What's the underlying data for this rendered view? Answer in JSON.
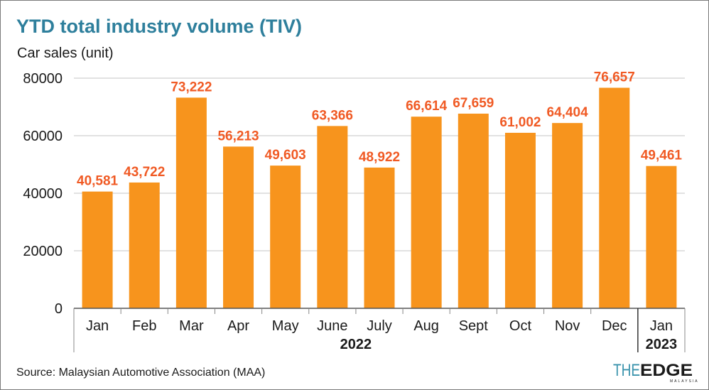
{
  "chart_data": {
    "type": "bar",
    "title": "YTD total industry volume (TIV)",
    "ylabel": "Car sales (unit)",
    "ylim": [
      0,
      80000
    ],
    "yticks": [
      "0",
      "20000",
      "40000",
      "60000",
      "80000"
    ],
    "grid": true,
    "categories": [
      "Jan",
      "Feb",
      "Mar",
      "Apr",
      "May",
      "June",
      "July",
      "Aug",
      "Sept",
      "Oct",
      "Nov",
      "Dec",
      "Jan"
    ],
    "year_groups": [
      {
        "label": "2022",
        "count": 12
      },
      {
        "label": "2023",
        "count": 1
      }
    ],
    "values": [
      40581,
      43722,
      73222,
      56213,
      49603,
      63366,
      48922,
      66614,
      67659,
      61002,
      64404,
      76657,
      49461
    ],
    "data_labels": [
      "40,581",
      "43,722",
      "73,222",
      "56,213",
      "49,603",
      "63,366",
      "48,922",
      "66,614",
      "67,659",
      "61,002",
      "64,404",
      "76,657",
      "49,461"
    ],
    "bar_color": "#f7941d",
    "label_color": "#f05a24",
    "title_color": "#2e7f9c"
  },
  "source": "Source: Malaysian Automotive Association (MAA)",
  "logo": {
    "text_the": "THE",
    "text_edge": "EDGE",
    "text_sub": "MALAYSIA"
  }
}
